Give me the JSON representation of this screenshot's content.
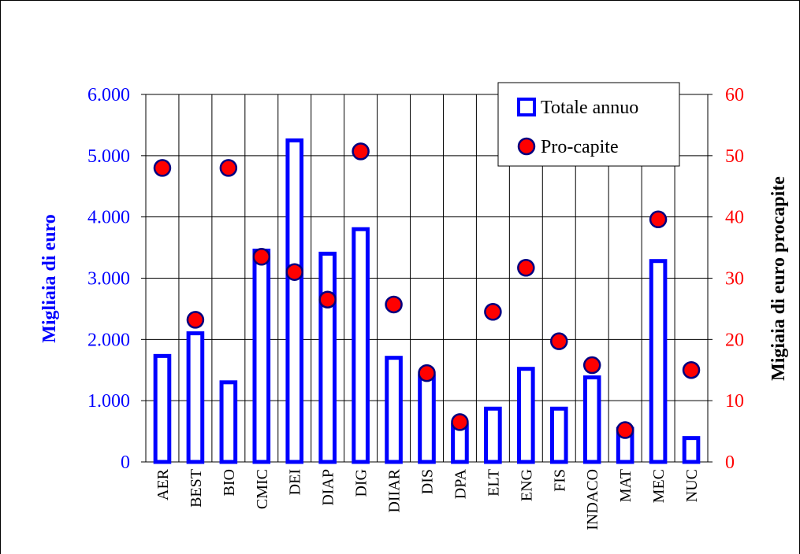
{
  "chart_data": {
    "type": "bar_scatter",
    "y_label": "Migliaia di euro",
    "y2_label": "Migiaia di euro procapite",
    "categories": [
      "AER",
      "BEST",
      "BIO",
      "CMIC",
      "DEI",
      "DIAP",
      "DIG",
      "DIIAR",
      "DIS",
      "DPA",
      "ELT",
      "ENG",
      "FIS",
      "INDACO",
      "MAT",
      "MEC",
      "NUC"
    ],
    "series": [
      {
        "name": "Totale annuo",
        "color": "#0000ff",
        "type": "bar",
        "values": [
          1730,
          2100,
          1300,
          3450,
          5250,
          3400,
          3800,
          1700,
          1400,
          600,
          870,
          1520,
          870,
          1380,
          540,
          3280,
          390
        ]
      },
      {
        "name": "Pro-capite",
        "color": "#ff0000",
        "type": "scatter",
        "axis": "y2",
        "values": [
          48,
          23.2,
          48,
          33.5,
          31,
          26.5,
          50.7,
          25.7,
          14.5,
          6.5,
          24.5,
          31.7,
          19.7,
          15.8,
          5.2,
          39.6,
          15
        ]
      }
    ],
    "ylim": [
      0,
      6000
    ],
    "yticks": [
      0,
      {
        "value": 1000,
        "label": "1.000"
      },
      {
        "value": 2000,
        "label": "2.000"
      },
      {
        "value": 3000,
        "label": "3.000"
      },
      {
        "value": 4000,
        "label": "4.000"
      },
      {
        "value": 5000,
        "label": "5.000"
      },
      {
        "value": 6000,
        "label": "6.000"
      }
    ],
    "y2lim": [
      0,
      60
    ],
    "y2ticks": [
      0,
      10,
      20,
      30,
      40,
      50,
      60
    ],
    "grid": true
  }
}
